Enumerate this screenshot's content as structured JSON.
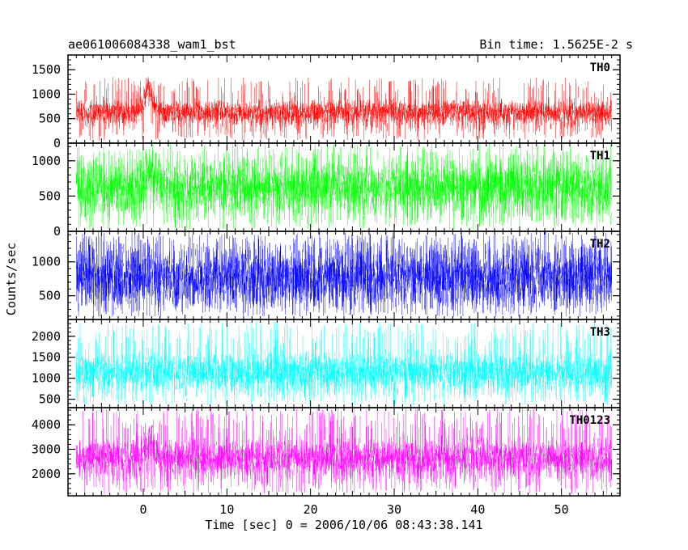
{
  "header": {
    "left_title": "ae061006084338_wam1_bst",
    "right_title": "Bin time: 1.5625E-2 s"
  },
  "chart_data": {
    "type": "line",
    "xlabel": "Time [sec] 0 = 2006/10/06 08:43:38.141",
    "ylabel": "Counts/sec",
    "xlim": [
      -9,
      57
    ],
    "data_x_range": [
      -8,
      56
    ],
    "bin_time_s": 0.015625,
    "x_ticks": [
      0,
      10,
      20,
      30,
      40,
      50
    ],
    "panels": [
      {
        "name": "TH0",
        "color": "#ff0000",
        "ylim": [
          0,
          1800
        ],
        "y_ticks": [
          0,
          500,
          1000,
          1500
        ],
        "baseline": 620,
        "noise": 110,
        "low": 50,
        "high": 1350,
        "burst": {
          "t": 0.6,
          "width": 0.7,
          "extra": 450
        },
        "spikes": 240
      },
      {
        "name": "TH1",
        "color": "#00ff00",
        "ylim": [
          0,
          1250
        ],
        "y_ticks": [
          0,
          500,
          1000
        ],
        "baseline": 620,
        "noise": 160,
        "low": 20,
        "high": 1250,
        "burst": {
          "t": 0.8,
          "width": 0.8,
          "extra": 220
        },
        "spikes": 300
      },
      {
        "name": "TH2",
        "color": "#0000ff",
        "ylim": [
          150,
          1450
        ],
        "y_ticks": [
          500,
          1000
        ],
        "baseline": 780,
        "noise": 170,
        "low": 190,
        "high": 1450,
        "burst": {
          "t": 0.8,
          "width": 0.5,
          "extra": 80
        },
        "spikes": 360
      },
      {
        "name": "TH3",
        "color": "#00ffff",
        "ylim": [
          300,
          2400
        ],
        "y_ticks": [
          500,
          1000,
          1500,
          2000
        ],
        "baseline": 1150,
        "noise": 200,
        "low": 350,
        "high": 2350,
        "burst": {
          "t": 0.8,
          "width": 0.5,
          "extra": 150
        },
        "spikes": 260
      },
      {
        "name": "TH0123",
        "color": "#ff00ff",
        "ylim": [
          1100,
          4700
        ],
        "y_ticks": [
          2000,
          3000,
          4000
        ],
        "baseline": 2650,
        "noise": 330,
        "low": 1150,
        "high": 4700,
        "burst": {
          "t": 0.8,
          "width": 0.7,
          "extra": 700
        },
        "spikes": 280
      }
    ]
  }
}
